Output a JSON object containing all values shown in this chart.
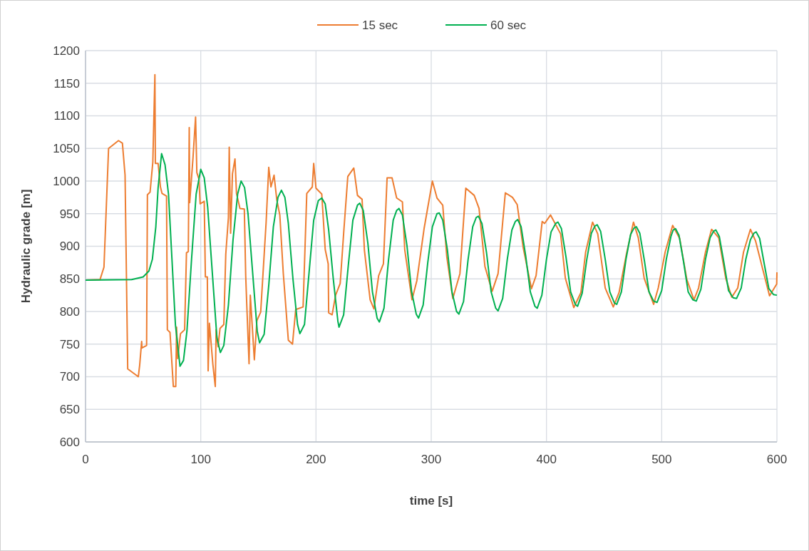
{
  "chart_data": {
    "type": "line",
    "xlabel": "time [s]",
    "ylabel": "Hydraulic grade [m]",
    "xlim": [
      0,
      600
    ],
    "ylim": [
      600,
      1200
    ],
    "xticks": [
      0,
      100,
      200,
      300,
      400,
      500,
      600
    ],
    "yticks": [
      600,
      650,
      700,
      750,
      800,
      850,
      900,
      950,
      1000,
      1050,
      1100,
      1150,
      1200
    ],
    "grid": true,
    "legend": "top",
    "marker": "none",
    "line_style": "solid",
    "series": [
      {
        "name": "15 sec",
        "color": "#ed7d31",
        "x": [
          0,
          12.6,
          16,
          20,
          28.6,
          32,
          34.3,
          36.6,
          45.8,
          47,
          48.7,
          49,
          53,
          53.7,
          56,
          58.4,
          60.2,
          60.6,
          63,
          65,
          66.4,
          70.3,
          71,
          73.3,
          76.2,
          78.3,
          79,
          80,
          82.4,
          86,
          87.6,
          89.2,
          90,
          90.4,
          93.2,
          95.5,
          96.6,
          98.4,
          99.5,
          103,
          104,
          105.7,
          106.4,
          107.5,
          110.5,
          112.6,
          113.3,
          115,
          116.7,
          120,
          121.7,
          124,
          124.7,
          125.9,
          127.5,
          129.7,
          131,
          134,
          137.8,
          139,
          140,
          141.9,
          143,
          146.5,
          148.7,
          152,
          156.7,
          159,
          160.9,
          163.6,
          166,
          168.6,
          171.6,
          176,
          179.6,
          182.4,
          188.8,
          192,
          196.8,
          198,
          200,
          205,
          208,
          210.6,
          211,
          214,
          217,
          221,
          224,
          227.6,
          232.8,
          236,
          240,
          242,
          247,
          250.3,
          254.4,
          258.5,
          261.7,
          266,
          270,
          275,
          277,
          283.3,
          287.5,
          293.8,
          301,
          305,
          310,
          313.5,
          318.7,
          324.9,
          330,
          337.3,
          341.5,
          346.6,
          352.9,
          358,
          364.3,
          370.5,
          374.6,
          379.8,
          387,
          391,
          396.3,
          398.4,
          403.5,
          412.3,
          416.4,
          423.7,
          429.9,
          434,
          440,
          444.5,
          451,
          458,
          463,
          469.4,
          475.5,
          479.7,
          484.8,
          493,
          497,
          503,
          509.5,
          515.6,
          521.8,
          528,
          532,
          538,
          543.3,
          549.5,
          555.6,
          560.8,
          566,
          571,
          577,
          581.5,
          587.5,
          593.6,
          599.8,
          600
        ],
        "values": [
          848,
          849,
          868,
          1050,
          1062,
          1058,
          1009,
          712,
          700,
          718,
          754,
          744,
          748,
          979,
          983,
          1029,
          1163,
          1027,
          1027,
          991,
          981,
          977,
          772,
          768,
          685,
          685,
          776,
          728,
          766,
          772,
          890,
          892,
          1082,
          967,
          1034,
          1098,
          1013,
          1003,
          965,
          969,
          853,
          853,
          709,
          782,
          719,
          685,
          772,
          746,
          774,
          780,
          888,
          944,
          1052,
          920,
          1011,
          1034,
          981,
          958,
          957,
          855,
          807,
          720,
          825,
          726,
          786,
          799,
          936,
          1021,
          991,
          1009,
          971,
          948,
          859,
          756,
          750,
          803,
          807,
          981,
          991,
          1027,
          989,
          980,
          895,
          873,
          798,
          795,
          825,
          843,
          920,
          1007,
          1020,
          978,
          972,
          894,
          818,
          804,
          855,
          873,
          1005,
          1005,
          974,
          968,
          895,
          818,
          847,
          927,
          1000,
          974,
          963,
          884,
          820,
          858,
          989,
          978,
          958,
          869,
          831,
          858,
          982,
          975,
          964,
          898,
          835,
          855,
          938,
          935,
          948,
          919,
          851,
          806,
          829,
          891,
          937,
          919,
          836,
          807,
          829,
          888,
          937,
          913,
          851,
          811,
          836,
          891,
          932,
          912,
          849,
          818,
          836,
          891,
          926,
          913,
          851,
          822,
          836,
          891,
          926,
          908,
          866,
          824,
          842,
          860
        ]
      },
      {
        "name": "60 sec",
        "color": "#00b050",
        "x": [
          0,
          40,
          50,
          55,
          58,
          61,
          63,
          66,
          69,
          72,
          75,
          78,
          82,
          85,
          88,
          92,
          96,
          100,
          103,
          106,
          110,
          114,
          117,
          120,
          124,
          128,
          132,
          135,
          138,
          141,
          145,
          149,
          151,
          155,
          159,
          163,
          167,
          170,
          173,
          176,
          180,
          184,
          186,
          190,
          194,
          198,
          202,
          205,
          208,
          211,
          215,
          219,
          220,
          224,
          228,
          232,
          236,
          238,
          241,
          245,
          249,
          253,
          255,
          259,
          263,
          267,
          270,
          272,
          275,
          279,
          283,
          287,
          289,
          293,
          297,
          301,
          305,
          307,
          310,
          314,
          318,
          322,
          324,
          328,
          332,
          336,
          339,
          341,
          344,
          348,
          352,
          356,
          358,
          362,
          366,
          370,
          373,
          375,
          378,
          382,
          386,
          390,
          392,
          396,
          400,
          404,
          408,
          410,
          413,
          417,
          421,
          425,
          427,
          431,
          435,
          439,
          442,
          444,
          447,
          451,
          455,
          459,
          461,
          465,
          469,
          473,
          476,
          478,
          481,
          485,
          489,
          493,
          496,
          500,
          504,
          508,
          510,
          512,
          515,
          519,
          523,
          527,
          530,
          534,
          538,
          542,
          545,
          547,
          550,
          554,
          558,
          562,
          565,
          569,
          573,
          577,
          580,
          582,
          585,
          589,
          593,
          597,
          600
        ],
        "values": [
          848,
          849,
          853,
          862,
          880,
          930,
          990,
          1042,
          1025,
          980,
          880,
          780,
          716,
          725,
          770,
          880,
          980,
          1018,
          1005,
          960,
          860,
          760,
          737,
          748,
          810,
          910,
          980,
          1000,
          990,
          950,
          860,
          770,
          752,
          765,
          840,
          930,
          975,
          986,
          975,
          935,
          850,
          780,
          766,
          780,
          860,
          940,
          970,
          974,
          965,
          925,
          850,
          785,
          776,
          795,
          870,
          940,
          963,
          966,
          955,
          905,
          830,
          790,
          784,
          805,
          880,
          940,
          955,
          958,
          948,
          900,
          830,
          796,
          790,
          810,
          875,
          930,
          950,
          951,
          940,
          895,
          830,
          800,
          796,
          815,
          880,
          930,
          944,
          946,
          935,
          890,
          830,
          805,
          801,
          820,
          880,
          925,
          938,
          941,
          930,
          885,
          830,
          808,
          805,
          825,
          880,
          922,
          935,
          937,
          927,
          883,
          830,
          811,
          808,
          828,
          880,
          920,
          931,
          933,
          923,
          880,
          830,
          813,
          811,
          830,
          880,
          918,
          928,
          930,
          920,
          878,
          830,
          816,
          814,
          832,
          880,
          915,
          925,
          927,
          917,
          876,
          830,
          818,
          816,
          834,
          880,
          913,
          923,
          925,
          915,
          875,
          832,
          821,
          820,
          836,
          880,
          910,
          920,
          922,
          912,
          873,
          835,
          826,
          825
        ]
      }
    ]
  }
}
